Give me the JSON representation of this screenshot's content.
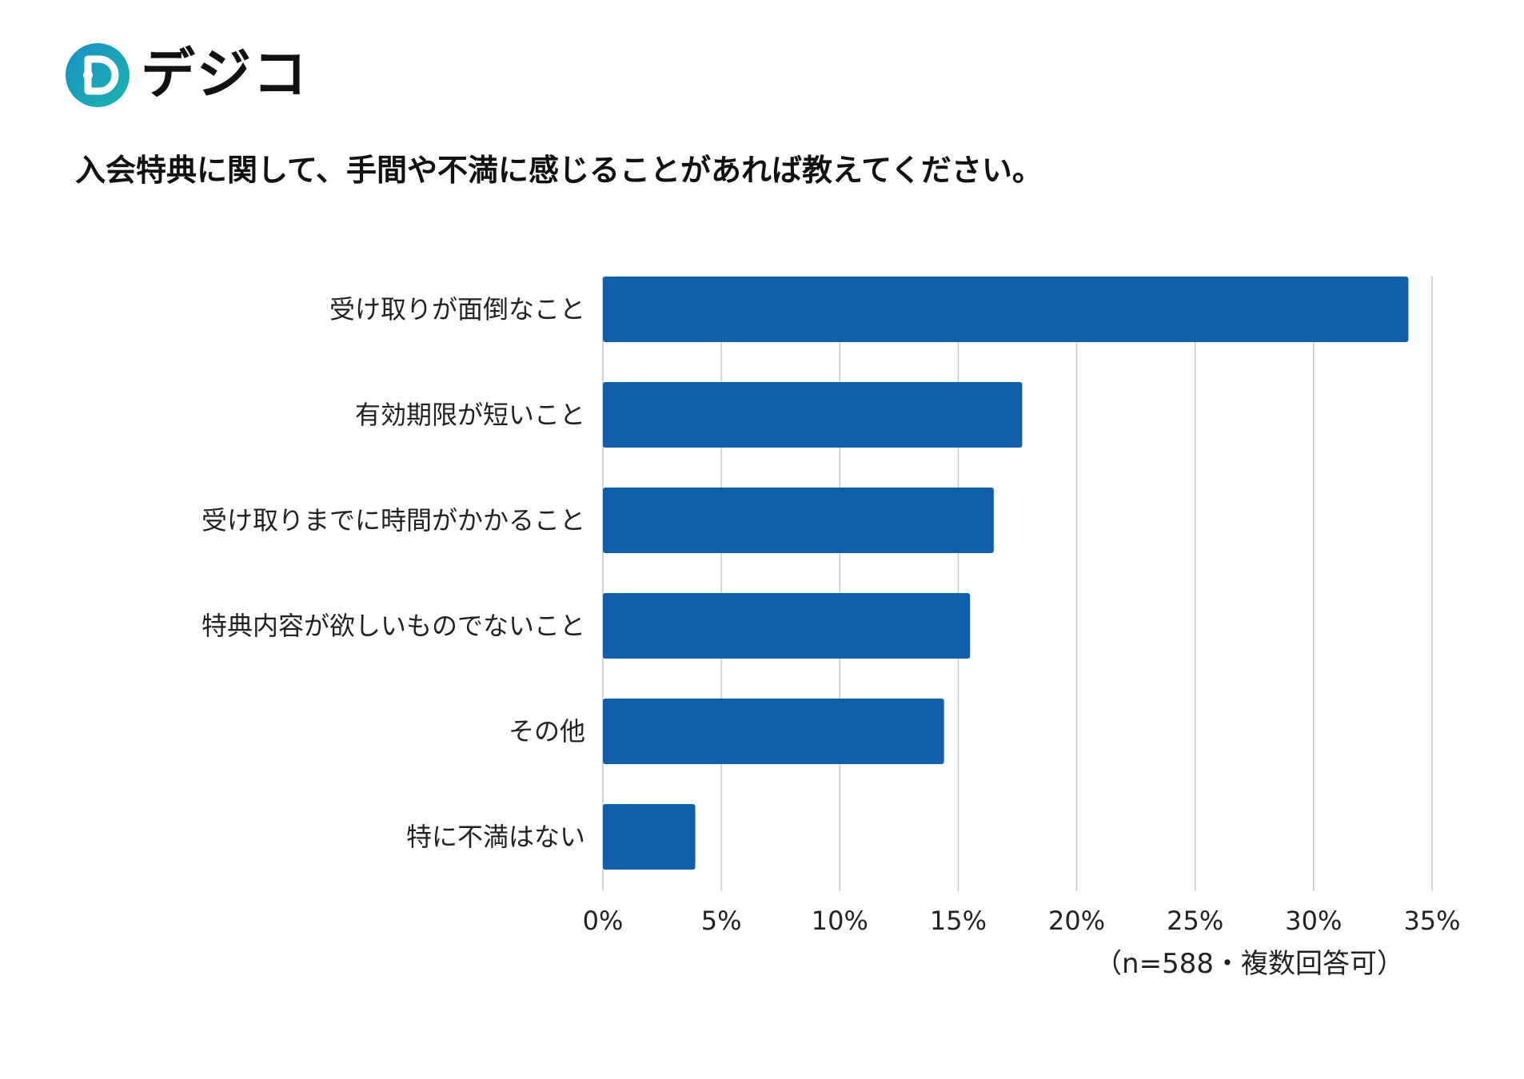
{
  "brand": {
    "name": "デジコ",
    "colors": {
      "mark_start": "#1a8fc1",
      "mark_end": "#1bb4b0",
      "dots": [
        "#1bb4b0",
        "#1f6fb8"
      ]
    }
  },
  "title": "入会特典に関して、手間や不満に感じることがあれば教えてください。",
  "note": "（n=588・複数回答可）",
  "chart_data": {
    "type": "bar",
    "orientation": "horizontal",
    "categories": [
      "受け取りが面倒なこと",
      "有効期限が短いこと",
      "受け取りまでに時間がかかること",
      "特典内容が欲しいものでないこと",
      "その他",
      "特に不満はない"
    ],
    "values": [
      34.0,
      17.7,
      16.5,
      15.5,
      14.4,
      3.9
    ],
    "xlim": [
      0,
      35
    ],
    "ticks": [
      0,
      5,
      10,
      15,
      20,
      25,
      30,
      35
    ],
    "tick_labels": [
      "0%",
      "5%",
      "10%",
      "15%",
      "20%",
      "25%",
      "30%",
      "35%"
    ],
    "grid": "vertical",
    "bar_color": "#115ea9",
    "grid_color": "#c8c8c8"
  }
}
